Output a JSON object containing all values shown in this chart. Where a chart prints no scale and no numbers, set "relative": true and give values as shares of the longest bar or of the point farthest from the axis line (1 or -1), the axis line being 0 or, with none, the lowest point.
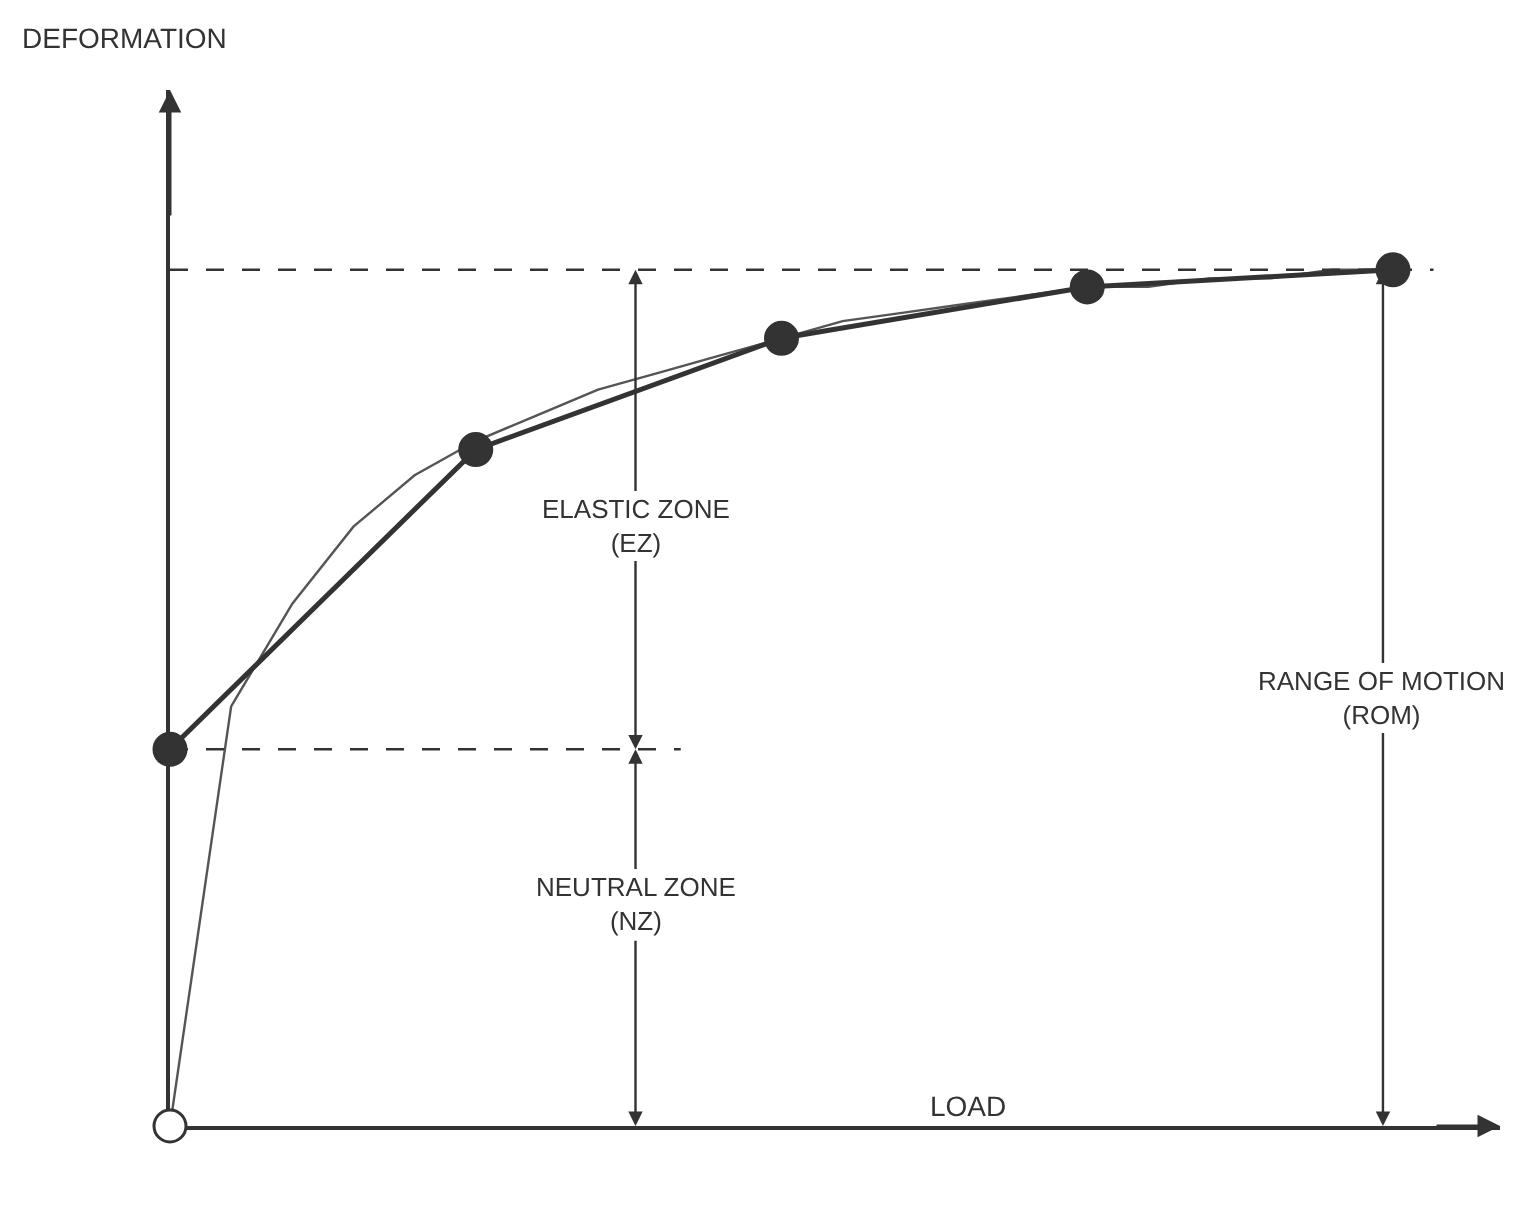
{
  "chart_data": {
    "type": "line",
    "relative": true,
    "xlabel": "LOAD",
    "categories": [
      null,
      null,
      null,
      null,
      null,
      null,
      null,
      null,
      null,
      null,
      null,
      null,
      null,
      null,
      null,
      null,
      null,
      null,
      null,
      null,
      null
    ],
    "series": [
      {
        "color": "#555555",
        "marker": "none",
        "values": [
          0,
          0.49,
          0.61,
          0.7,
          0.76,
          0.8,
          0.83,
          0.86,
          0.88,
          0.9,
          0.92,
          0.94,
          0.95,
          0.96,
          0.97,
          0.98,
          0.98,
          0.99,
          0.99,
          1.0,
          1.0
        ]
      },
      {
        "color": "#333333",
        "marker": "circle",
        "values": [
          0.44,
          null,
          null,
          null,
          null,
          0.79,
          null,
          null,
          null,
          null,
          0.92,
          null,
          null,
          null,
          null,
          0.98,
          null,
          null,
          null,
          null,
          1.0
        ]
      }
    ],
    "ref_lines": [
      {
        "axis": "y",
        "value": 0.44,
        "line_style": "dashed",
        "color": "#333333"
      },
      {
        "axis": "y",
        "value": 1.0,
        "line_style": "dashed",
        "color": "#333333"
      }
    ],
    "annotations": [
      "DEFORMATION",
      "ELASTIC ZONE\n(EZ)",
      "NEUTRAL ZONE\n(NZ)",
      "RANGE OF MOTION\n(ROM)"
    ]
  }
}
